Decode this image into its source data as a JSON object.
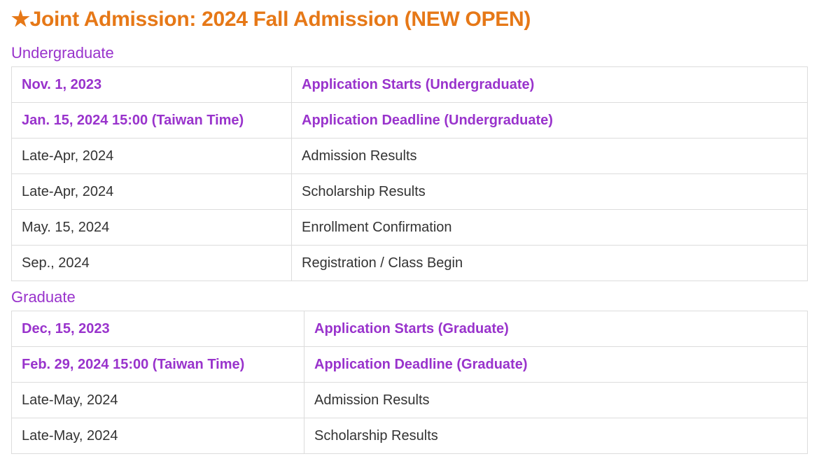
{
  "colors": {
    "title": "#e67817",
    "accent_purple": "#9933cc",
    "text": "#333333",
    "border": "#dcdcdc",
    "background": "#ffffff"
  },
  "title_star": "★",
  "title_text": "Joint Admission: 2024 Fall Admission (NEW OPEN)",
  "undergraduate": {
    "heading": "Undergraduate",
    "rows": [
      {
        "date": "Nov. 1, 2023",
        "event": "Application Starts (Undergraduate)",
        "highlight": true
      },
      {
        "date": "Jan. 15, 2024   15:00 (Taiwan Time)",
        "event": "Application Deadline (Undergraduate)",
        "highlight": true
      },
      {
        "date": "Late-Apr, 2024",
        "event": "Admission Results",
        "highlight": false
      },
      {
        "date": "Late-Apr, 2024",
        "event": "Scholarship Results",
        "highlight": false
      },
      {
        "date": "May. 15, 2024",
        "event": "Enrollment Confirmation",
        "highlight": false
      },
      {
        "date": "Sep., 2024",
        "event": "Registration / Class Begin",
        "highlight": false
      }
    ]
  },
  "graduate": {
    "heading": "Graduate",
    "rows": [
      {
        "date": "Dec, 15, 2023",
        "event": "Application Starts  (Graduate)",
        "highlight": true
      },
      {
        "date": "Feb. 29, 2024   15:00 (Taiwan Time)",
        "event": "Application Deadline (Graduate)",
        "highlight": true
      },
      {
        "date": "Late-May, 2024",
        "event": "Admission Results",
        "highlight": false
      },
      {
        "date": "Late-May, 2024",
        "event": "Scholarship Results",
        "highlight": false
      }
    ]
  }
}
